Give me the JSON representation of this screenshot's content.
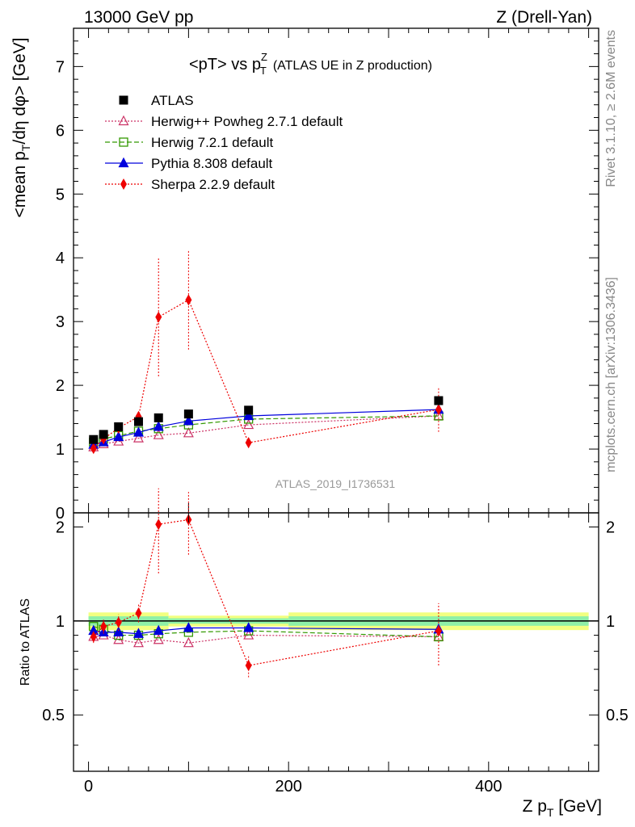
{
  "header": {
    "left": "13000 GeV pp",
    "right": "Z (Drell-Yan)"
  },
  "side_labels": {
    "rivet": "Rivet 3.1.10, ≥ 2.6M events",
    "mcplots": "mcplots.cern.ch [arXiv:1306.3436]"
  },
  "chart_data": [
    {
      "type": "scatter",
      "title": "<pT> vs pT^Z (ATLAS UE in Z production)",
      "title_main": "<pT> vs p",
      "title_sup": "Z",
      "title_sub": "T",
      "title_tail": "(ATLAS UE in Z production)",
      "ylabel": "<mean pT/dη dφ> [GeV]",
      "ylabel_parts": [
        "<mean p",
        "T",
        "/dη dφ> [GeV]"
      ],
      "xlabel": "Z pT [GeV]",
      "xlabel_parts": [
        "Z p",
        "T",
        " [GeV]"
      ],
      "xlim": [
        -15,
        510
      ],
      "ylim": [
        0,
        7.6
      ],
      "yticks": [
        0,
        1,
        2,
        3,
        4,
        5,
        6,
        7
      ],
      "xticks": [
        0,
        200,
        400
      ],
      "watermark": "ATLAS_2019_I1736531",
      "legend_position": "top-left",
      "series": [
        {
          "name": "ATLAS",
          "color": "#000000",
          "marker": "filled-square",
          "line": "none",
          "x": [
            5,
            15,
            30,
            50,
            70,
            100,
            160,
            350
          ],
          "y": [
            1.15,
            1.23,
            1.35,
            1.43,
            1.49,
            1.55,
            1.61,
            1.76
          ]
        },
        {
          "name": "Herwig++ Powheg 2.7.1 default",
          "color": "#cc3366",
          "marker": "open-triangle",
          "line": "dotted",
          "x": [
            5,
            15,
            30,
            50,
            70,
            100,
            160,
            350
          ],
          "y": [
            1.03,
            1.08,
            1.12,
            1.17,
            1.22,
            1.25,
            1.38,
            1.52
          ]
        },
        {
          "name": "Herwig 7.2.1 default",
          "color": "#339900",
          "marker": "open-square",
          "line": "dashed",
          "x": [
            5,
            15,
            30,
            50,
            70,
            100,
            160,
            350
          ],
          "y": [
            1.11,
            1.16,
            1.21,
            1.28,
            1.32,
            1.38,
            1.47,
            1.52
          ]
        },
        {
          "name": "Pythia 8.308 default",
          "color": "#0000dd",
          "marker": "filled-triangle",
          "line": "solid",
          "x": [
            5,
            15,
            30,
            50,
            70,
            100,
            160,
            350
          ],
          "y": [
            1.07,
            1.11,
            1.19,
            1.26,
            1.35,
            1.44,
            1.52,
            1.62
          ]
        },
        {
          "name": "Sherpa 2.2.9 default",
          "color": "#ee0000",
          "marker": "filled-diamond",
          "line": "dotted",
          "x": [
            5,
            15,
            30,
            50,
            70,
            100,
            160,
            350
          ],
          "y": [
            1.01,
            1.16,
            1.33,
            1.51,
            3.07,
            3.34,
            1.1,
            1.62
          ],
          "err": [
            0.06,
            0.06,
            0.08,
            0.1,
            0.93,
            0.78,
            0.08,
            0.35
          ]
        }
      ]
    },
    {
      "type": "scatter",
      "ylabel": "Ratio to ATLAS",
      "ylim": [
        0.33,
        2.22
      ],
      "yticks": [
        0.5,
        1,
        2
      ],
      "xlim": [
        -15,
        510
      ],
      "reference_band": {
        "bins": [
          [
            0,
            80,
            0.035,
            0.065
          ],
          [
            80,
            200,
            0.02,
            0.04
          ],
          [
            200,
            500,
            0.035,
            0.065
          ]
        ]
      },
      "series": [
        {
          "name": "Herwig++ Powheg 2.7.1 default",
          "color": "#cc3366",
          "x": [
            5,
            15,
            30,
            50,
            70,
            100,
            160,
            350
          ],
          "y": [
            0.89,
            0.9,
            0.87,
            0.85,
            0.87,
            0.85,
            0.9,
            0.89
          ]
        },
        {
          "name": "Herwig 7.2.1 default",
          "color": "#339900",
          "x": [
            5,
            15,
            30,
            50,
            70,
            100,
            160,
            350
          ],
          "y": [
            0.96,
            0.94,
            0.9,
            0.9,
            0.91,
            0.92,
            0.93,
            0.89
          ]
        },
        {
          "name": "Pythia 8.308 default",
          "color": "#0000dd",
          "x": [
            5,
            15,
            30,
            50,
            70,
            100,
            160,
            350
          ],
          "y": [
            0.93,
            0.92,
            0.92,
            0.91,
            0.93,
            0.95,
            0.95,
            0.94
          ]
        },
        {
          "name": "Sherpa 2.2.9 default",
          "color": "#ee0000",
          "x": [
            5,
            15,
            30,
            50,
            70,
            100,
            160,
            350
          ],
          "y": [
            0.89,
            0.96,
            0.99,
            1.06,
            2.04,
            2.11,
            0.72,
            0.93
          ],
          "err": [
            0.04,
            0.05,
            0.06,
            0.07,
            0.62,
            0.48,
            0.06,
            0.21
          ]
        }
      ]
    }
  ]
}
